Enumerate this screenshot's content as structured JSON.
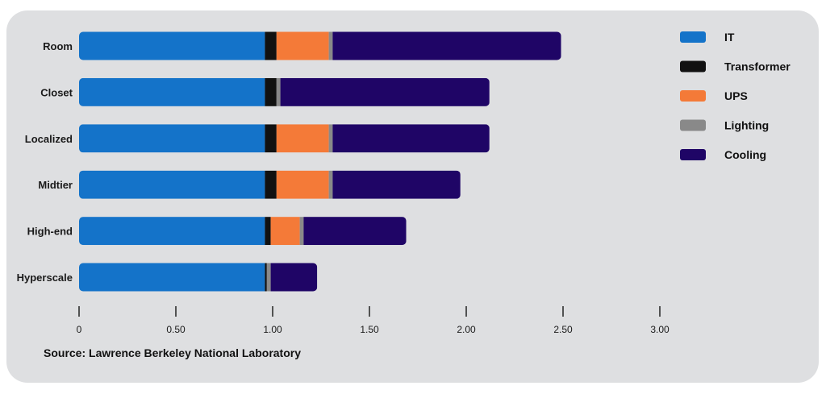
{
  "chart_data": {
    "type": "bar",
    "orientation": "horizontal",
    "stacked": true,
    "categories": [
      "Room",
      "Closet",
      "Localized",
      "Midtier",
      "High-end",
      "Hyperscale"
    ],
    "series": [
      {
        "name": "IT",
        "color": "#1473c9",
        "values": [
          0.96,
          0.96,
          0.96,
          0.96,
          0.96,
          0.96
        ]
      },
      {
        "name": "Transformer",
        "color": "#111111",
        "values": [
          0.06,
          0.06,
          0.06,
          0.06,
          0.03,
          0.01
        ]
      },
      {
        "name": "UPS",
        "color": "#f47a38",
        "values": [
          0.27,
          0.0,
          0.27,
          0.27,
          0.15,
          0.0
        ]
      },
      {
        "name": "Lighting",
        "color": "#898989",
        "values": [
          0.02,
          0.02,
          0.02,
          0.02,
          0.02,
          0.02
        ]
      },
      {
        "name": "Cooling",
        "color": "#1f0566",
        "values": [
          1.18,
          1.08,
          0.81,
          0.66,
          0.53,
          0.24
        ]
      }
    ],
    "x_ticks": [
      "0",
      "0.50",
      "1.00",
      "1.50",
      "2.00",
      "2.50",
      "3.00"
    ],
    "xlim": [
      0,
      3.0
    ],
    "grid": false,
    "legend_position": "right"
  },
  "source_text": "Source: Lawrence Berkeley National Laboratory"
}
